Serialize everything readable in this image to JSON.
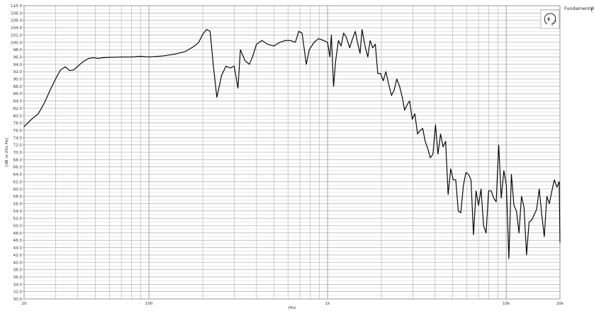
{
  "chart_data": {
    "type": "line",
    "title": "",
    "xlabel": "(Hz)",
    "ylabel": "[dB re 20u Pa]",
    "x_scale": "log",
    "xlim": [
      20,
      20000
    ],
    "ylim": [
      30,
      110
    ],
    "grid": true,
    "legend_position": "top-right",
    "line_color": "#000000",
    "x_tick_labels": [
      {
        "value": 20,
        "label": "20"
      },
      {
        "value": 100,
        "label": "100"
      },
      {
        "value": 1000,
        "label": "1k"
      },
      {
        "value": 10000,
        "label": "10k"
      },
      {
        "value": 20000,
        "label": "20k"
      }
    ],
    "y_tick_labels": [
      "30.0",
      "32.0",
      "34.0",
      "36.0",
      "38.0",
      "40.0",
      "42.0",
      "44.0",
      "46.0",
      "48.0",
      "50.0",
      "52.0",
      "54.0",
      "56.0",
      "58.0",
      "60.0",
      "62.0",
      "64.0",
      "66.0",
      "68.0",
      "70.0",
      "72.0",
      "74.0",
      "76.0",
      "78.0",
      "80.0",
      "82.0",
      "84.0",
      "86.0",
      "88.0",
      "90.0",
      "92.0",
      "94.0",
      "96.0",
      "98.0",
      "100.0",
      "102.0",
      "104.0",
      "106.0",
      "108.0",
      "110.0"
    ],
    "series": [
      {
        "name": "Fundamental",
        "points": [
          [
            20,
            77
          ],
          [
            22,
            79
          ],
          [
            24,
            80.5
          ],
          [
            26,
            83.5
          ],
          [
            28,
            87
          ],
          [
            30,
            90
          ],
          [
            32,
            92.5
          ],
          [
            34,
            93.3
          ],
          [
            36,
            92.3
          ],
          [
            38,
            92.5
          ],
          [
            40,
            93.5
          ],
          [
            43,
            94.8
          ],
          [
            46,
            95.6
          ],
          [
            49,
            95.8
          ],
          [
            52,
            95.6
          ],
          [
            55,
            95.8
          ],
          [
            60,
            95.9
          ],
          [
            70,
            96
          ],
          [
            80,
            96
          ],
          [
            90,
            96.2
          ],
          [
            100,
            96
          ],
          [
            120,
            96.3
          ],
          [
            140,
            96.8
          ],
          [
            160,
            97.5
          ],
          [
            180,
            99
          ],
          [
            190,
            100
          ],
          [
            200,
            102.2
          ],
          [
            210,
            103.5
          ],
          [
            220,
            103
          ],
          [
            230,
            93
          ],
          [
            240,
            85
          ],
          [
            255,
            91
          ],
          [
            270,
            93.5
          ],
          [
            285,
            93
          ],
          [
            300,
            93.5
          ],
          [
            315,
            87.5
          ],
          [
            325,
            98
          ],
          [
            345,
            95
          ],
          [
            365,
            94
          ],
          [
            380,
            96
          ],
          [
            400,
            99.5
          ],
          [
            430,
            100.5
          ],
          [
            460,
            99.5
          ],
          [
            500,
            99
          ],
          [
            540,
            100
          ],
          [
            580,
            100.5
          ],
          [
            620,
            100.5
          ],
          [
            660,
            100
          ],
          [
            690,
            103
          ],
          [
            720,
            102.5
          ],
          [
            760,
            94
          ],
          [
            790,
            98
          ],
          [
            840,
            100
          ],
          [
            890,
            101
          ],
          [
            950,
            100.5
          ],
          [
            1000,
            100
          ],
          [
            1030,
            96
          ],
          [
            1050,
            102
          ],
          [
            1080,
            88
          ],
          [
            1110,
            95
          ],
          [
            1150,
            100.5
          ],
          [
            1190,
            99
          ],
          [
            1230,
            102.5
          ],
          [
            1270,
            101.5
          ],
          [
            1330,
            98.5
          ],
          [
            1380,
            101
          ],
          [
            1430,
            103
          ],
          [
            1470,
            100
          ],
          [
            1520,
            97
          ],
          [
            1560,
            103.5
          ],
          [
            1620,
            99
          ],
          [
            1680,
            96
          ],
          [
            1730,
            100.5
          ],
          [
            1790,
            98.5
          ],
          [
            1850,
            99.5
          ],
          [
            1910,
            91.5
          ],
          [
            1980,
            91.5
          ],
          [
            2050,
            89.5
          ],
          [
            2120,
            92
          ],
          [
            2200,
            88.5
          ],
          [
            2280,
            85.5
          ],
          [
            2360,
            87
          ],
          [
            2440,
            90
          ],
          [
            2530,
            88
          ],
          [
            2620,
            85
          ],
          [
            2700,
            81.5
          ],
          [
            2790,
            83
          ],
          [
            2880,
            84
          ],
          [
            2980,
            79
          ],
          [
            3080,
            80.5
          ],
          [
            3190,
            75
          ],
          [
            3300,
            76
          ],
          [
            3410,
            76.5
          ],
          [
            3520,
            73
          ],
          [
            3640,
            71
          ],
          [
            3760,
            68.5
          ],
          [
            3890,
            69.5
          ],
          [
            4020,
            77.5
          ],
          [
            4150,
            69.5
          ],
          [
            4290,
            75
          ],
          [
            4430,
            71.5
          ],
          [
            4580,
            73
          ],
          [
            4730,
            58.5
          ],
          [
            4890,
            65.5
          ],
          [
            5050,
            62.5
          ],
          [
            5220,
            62.5
          ],
          [
            5390,
            54
          ],
          [
            5570,
            53.5
          ],
          [
            5760,
            61
          ],
          [
            5950,
            64.5
          ],
          [
            6150,
            64
          ],
          [
            6350,
            62.5
          ],
          [
            6560,
            47.5
          ],
          [
            6780,
            59.5
          ],
          [
            7000,
            55.5
          ],
          [
            7230,
            60
          ],
          [
            7470,
            50
          ],
          [
            7720,
            48
          ],
          [
            7970,
            59.5
          ],
          [
            8240,
            59.5
          ],
          [
            8510,
            57.5
          ],
          [
            8790,
            56.5
          ],
          [
            9080,
            72
          ],
          [
            9380,
            57.5
          ],
          [
            9700,
            65
          ],
          [
            10020,
            61
          ],
          [
            10350,
            41
          ],
          [
            10690,
            64
          ],
          [
            11050,
            55.5
          ],
          [
            11410,
            54
          ],
          [
            11790,
            48
          ],
          [
            12180,
            58
          ],
          [
            12580,
            55
          ],
          [
            13000,
            42
          ],
          [
            13430,
            51
          ],
          [
            13880,
            51.5
          ],
          [
            14340,
            53
          ],
          [
            14810,
            54.5
          ],
          [
            15310,
            60
          ],
          [
            15810,
            53
          ],
          [
            16340,
            47
          ],
          [
            16880,
            58
          ],
          [
            17440,
            56
          ],
          [
            18020,
            59.5
          ],
          [
            18610,
            62.5
          ],
          [
            19230,
            60.5
          ],
          [
            19800,
            62
          ],
          [
            20000,
            45.5
          ]
        ]
      }
    ]
  }
}
